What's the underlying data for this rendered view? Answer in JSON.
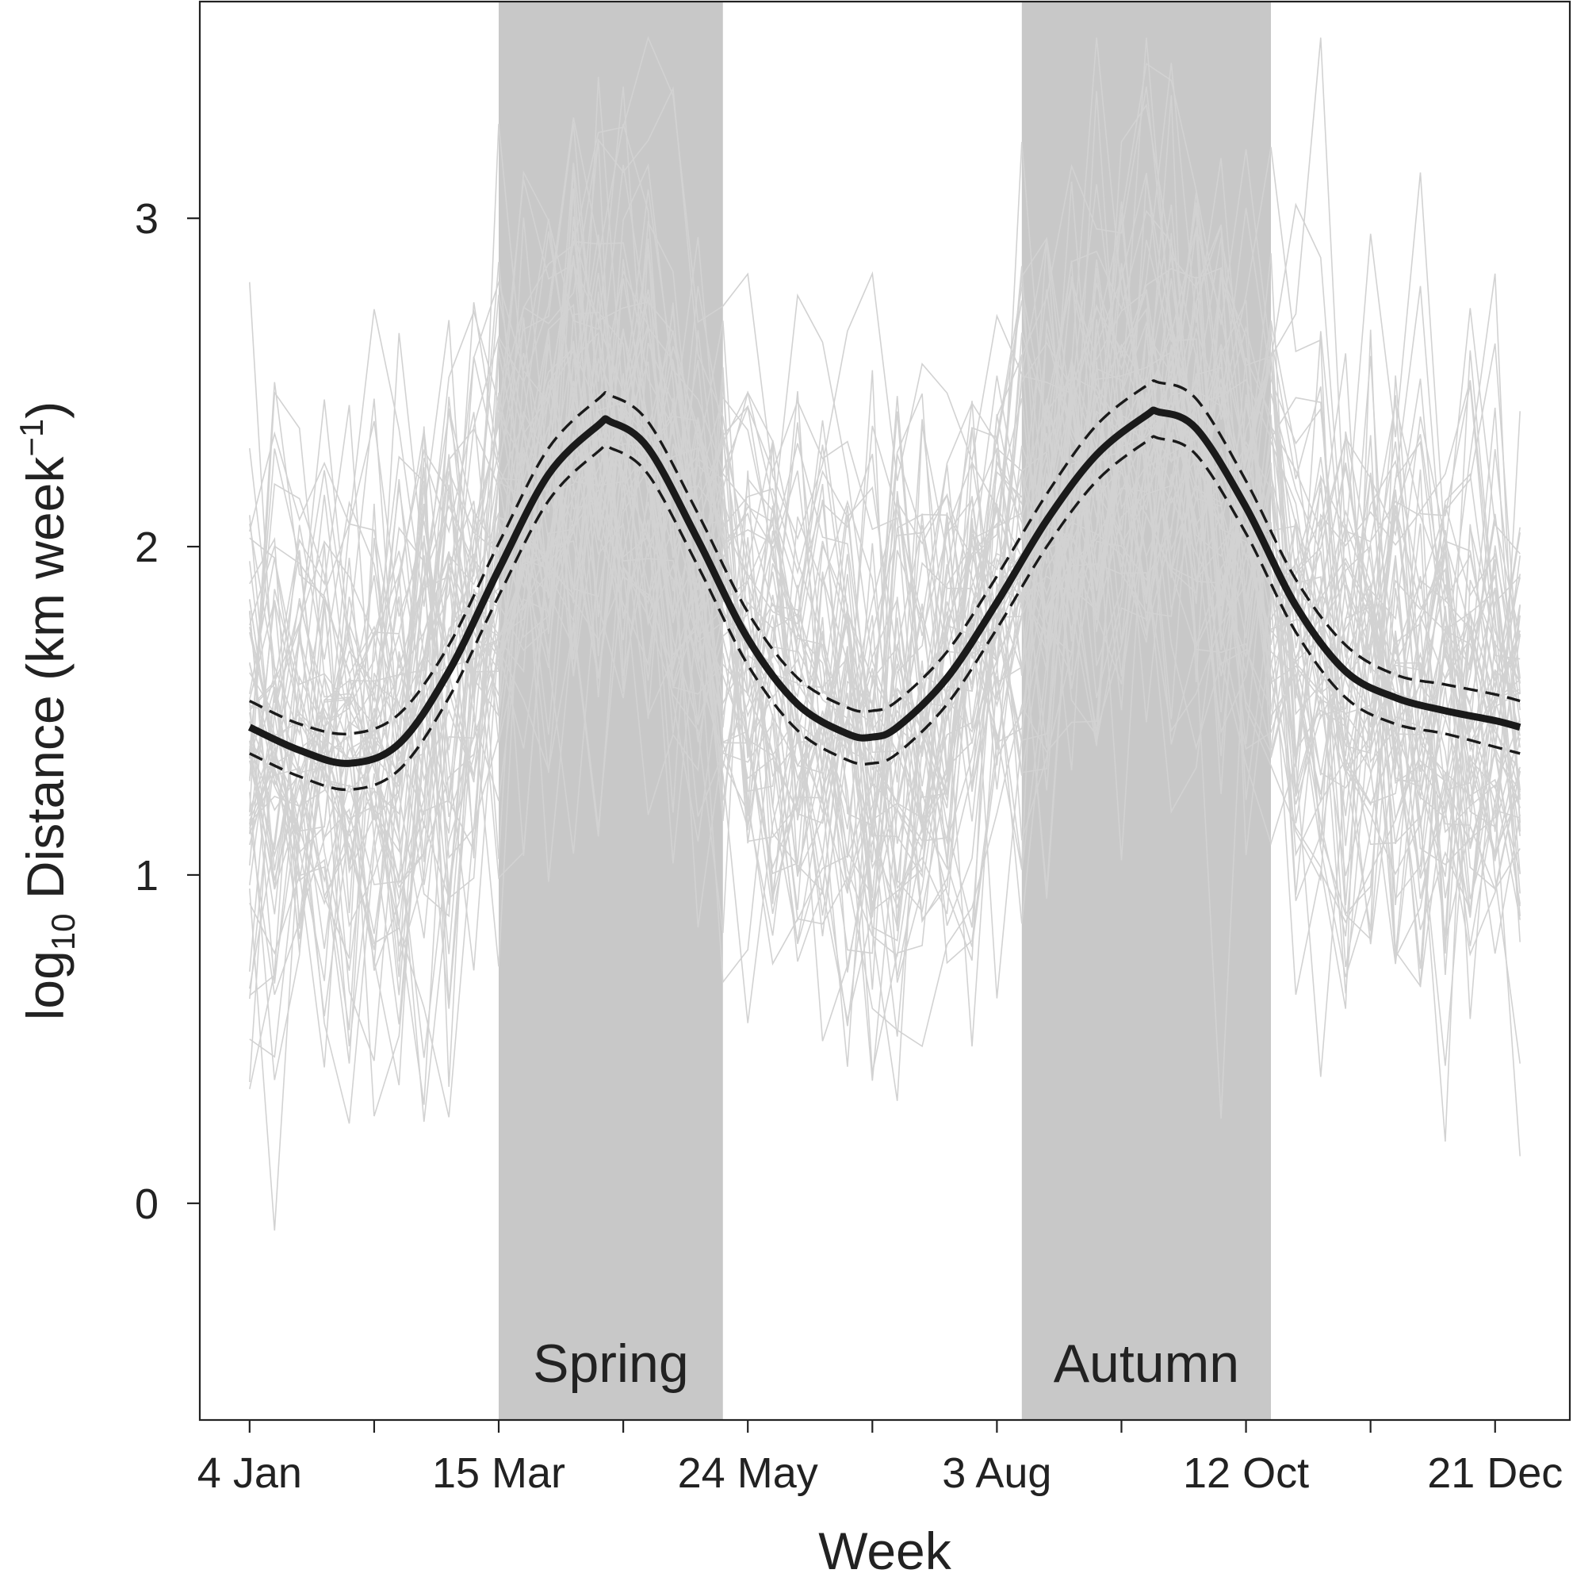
{
  "chart_data": {
    "type": "line",
    "xlabel": "Week",
    "ylabel": {
      "prefix": "log",
      "subscript": "10",
      "main": " Distance (km week",
      "superscript": "−1",
      "suffix": ")"
    },
    "xlim": [
      -2,
      53
    ],
    "ylim": [
      -0.66,
      3.66
    ],
    "x_ticks": [
      0,
      5,
      10,
      15,
      20,
      25,
      30,
      35,
      40,
      45,
      50
    ],
    "x_tick_labels": [
      {
        "x": 0,
        "label": "4 Jan"
      },
      {
        "x": 10,
        "label": "15 Mar"
      },
      {
        "x": 20,
        "label": "24 May"
      },
      {
        "x": 30,
        "label": "3 Aug"
      },
      {
        "x": 40,
        "label": "12 Oct"
      },
      {
        "x": 50,
        "label": "21 Dec"
      }
    ],
    "y_ticks": [
      0,
      1,
      2,
      3
    ],
    "y_tick_labels": [
      "0",
      "1",
      "2",
      "3"
    ],
    "seasons": [
      {
        "name": "Spring",
        "x_start": 10,
        "x_end": 19
      },
      {
        "name": "Autumn",
        "x_start": 31,
        "x_end": 41
      }
    ],
    "colors": {
      "season_band": "#c8c8c8",
      "individual_lines": "#d2d2d2",
      "fit_line": "#1a1a1a",
      "ci_line": "#1a1a1a",
      "axis": "#222222"
    },
    "fitted_mean": {
      "x": [
        0,
        2,
        4,
        6,
        8,
        10,
        12,
        14,
        14.5,
        16,
        18,
        20,
        22,
        24,
        25,
        26,
        28,
        30,
        32,
        34,
        36,
        36.5,
        38,
        40,
        42,
        44,
        46,
        48,
        50,
        51
      ],
      "y": [
        1.45,
        1.38,
        1.34,
        1.4,
        1.62,
        1.93,
        2.22,
        2.37,
        2.38,
        2.3,
        2.02,
        1.72,
        1.52,
        1.43,
        1.42,
        1.45,
        1.6,
        1.83,
        2.08,
        2.28,
        2.4,
        2.41,
        2.36,
        2.12,
        1.82,
        1.62,
        1.54,
        1.5,
        1.47,
        1.45
      ]
    },
    "ci_upper": {
      "x": [
        0,
        2,
        4,
        6,
        8,
        10,
        12,
        14,
        14.5,
        16,
        18,
        20,
        22,
        24,
        25,
        26,
        28,
        30,
        32,
        34,
        36,
        36.5,
        38,
        40,
        42,
        44,
        46,
        48,
        50,
        51
      ],
      "y": [
        1.53,
        1.46,
        1.43,
        1.49,
        1.7,
        2.01,
        2.3,
        2.45,
        2.46,
        2.38,
        2.1,
        1.8,
        1.6,
        1.51,
        1.5,
        1.53,
        1.68,
        1.91,
        2.16,
        2.37,
        2.49,
        2.5,
        2.45,
        2.2,
        1.9,
        1.7,
        1.61,
        1.58,
        1.55,
        1.53
      ]
    },
    "ci_lower": {
      "x": [
        0,
        2,
        4,
        6,
        8,
        10,
        12,
        14,
        14.5,
        16,
        18,
        20,
        22,
        24,
        25,
        26,
        28,
        30,
        32,
        34,
        36,
        36.5,
        38,
        40,
        42,
        44,
        46,
        48,
        50,
        51
      ],
      "y": [
        1.37,
        1.3,
        1.26,
        1.32,
        1.54,
        1.85,
        2.14,
        2.29,
        2.3,
        2.22,
        1.94,
        1.64,
        1.44,
        1.35,
        1.34,
        1.37,
        1.52,
        1.75,
        2.0,
        2.2,
        2.32,
        2.33,
        2.28,
        2.04,
        1.74,
        1.54,
        1.46,
        1.43,
        1.39,
        1.37
      ]
    },
    "individual_series": {
      "count": 60,
      "weeks": 52,
      "noise_sd": 0.38,
      "spike_range": [
        -0.55,
        3.55
      ],
      "seed": 7
    },
    "legend": "none",
    "grid": false
  }
}
